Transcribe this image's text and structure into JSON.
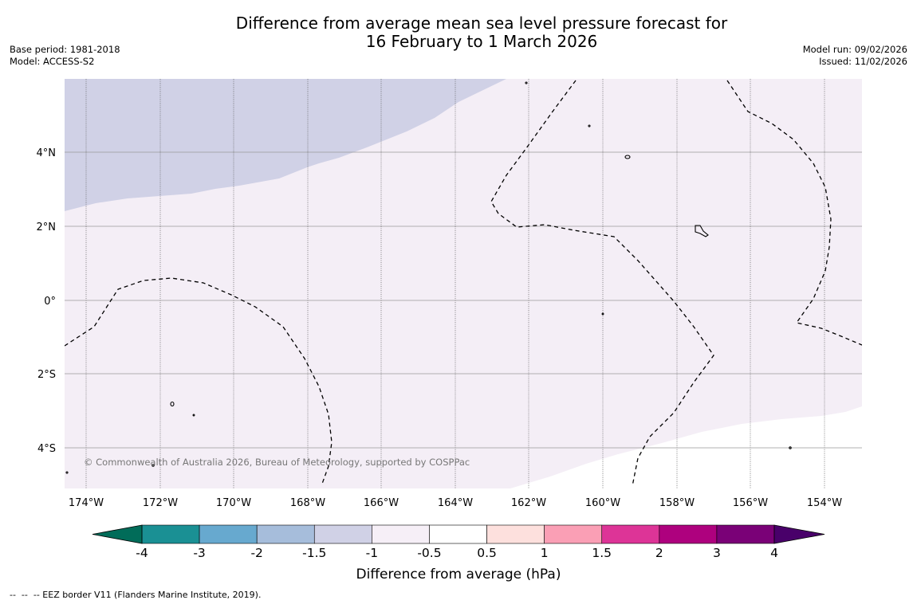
{
  "title": {
    "line1": "Difference from average mean sea level pressure forecast for",
    "line2": "16 February to 1 March 2026"
  },
  "meta_left": {
    "base_period": "Base period: 1981-2018",
    "model": "Model: ACCESS-S2"
  },
  "meta_right": {
    "model_run": "Model run: 09/02/2026",
    "issued": "Issued: 11/02/2026"
  },
  "map": {
    "lat_labels": [
      "4°N",
      "2°N",
      "0°",
      "2°S",
      "4°S"
    ],
    "lon_labels": [
      "174°W",
      "172°W",
      "170°W",
      "168°W",
      "166°W",
      "164°W",
      "162°W",
      "160°W",
      "158°W",
      "156°W",
      "154°W"
    ],
    "copyright": "© Commonwealth of Australia 2026, Bureau of Meteorology, supported by COSPPac",
    "region_colors": {
      "negative_1_5_to_1": "#d0d1e6",
      "negative_1_to_0_5": "#f4eef6",
      "neutral": "#ffffff"
    }
  },
  "colorbar": {
    "title": "Difference from average (hPa)",
    "labels": [
      "-4",
      "-3",
      "-2",
      "-1.5",
      "-1",
      "-0.5",
      "0.5",
      "1",
      "1.5",
      "2",
      "3",
      "4"
    ],
    "colors": [
      "#1a9094",
      "#67a9cf",
      "#a6bddb",
      "#d0d1e6",
      "#f6eff7",
      "#ffffff",
      "#fde0dd",
      "#fa9fb5",
      "#dd3497",
      "#ae017e",
      "#7a0177"
    ],
    "under_color": "#016c59",
    "over_color": "#49006a"
  },
  "footer": "--  --  -- EEZ border V11 (Flanders Marine Institute, 2019)."
}
